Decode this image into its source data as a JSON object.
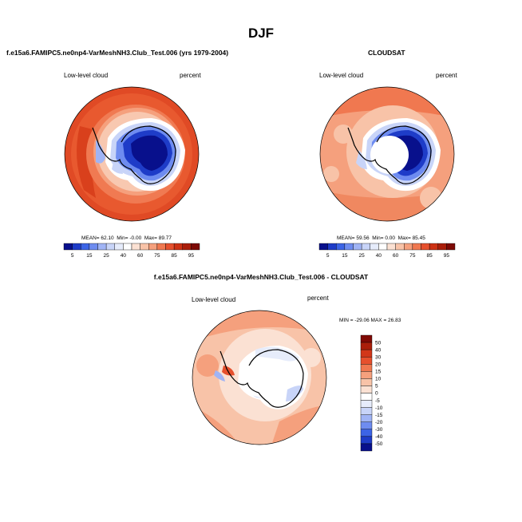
{
  "title": "DJF",
  "panels": {
    "model": {
      "title": "f.e15a6.FAMIPC5.ne0np4-VarMeshNH3.Club_Test.006 (yrs 1979-2004)",
      "left_label": "Low-level cloud",
      "right_label": "percent",
      "stats": {
        "mean_label": "MEAN=",
        "mean": "62.10",
        "min_label": "Min=",
        "min": "-0.00",
        "max_label": "Max=",
        "max": "89.77"
      }
    },
    "obs": {
      "title": "CLOUDSAT",
      "left_label": "Low-level cloud",
      "right_label": "percent",
      "stats": {
        "mean_label": "MEAN=",
        "mean": "59.56",
        "min_label": "Min=",
        "min": "0.00",
        "max_label": "Max=",
        "max": "85.45"
      }
    },
    "diff": {
      "title": "f.e15a6.FAMIPC5.ne0np4-VarMeshNH3.Club_Test.006 - CLOUDSAT",
      "left_label": "Low-level cloud",
      "right_label": "percent",
      "stats_text": "MIN = -29.06  MAX =  26.83"
    }
  },
  "colorbar_h": {
    "ticks": [
      "5",
      "15",
      "25",
      "40",
      "60",
      "75",
      "85",
      "95"
    ],
    "colors": [
      "#08108c",
      "#1e3cc8",
      "#3c64e6",
      "#6e8cf0",
      "#a0b4f5",
      "#c8d4f8",
      "#e6ecfb",
      "#ffffff",
      "#fbe1d3",
      "#f8c3a8",
      "#f5a07d",
      "#f07850",
      "#e6502d",
      "#cd3214",
      "#aa1e0a",
      "#7d0a05"
    ]
  },
  "colorbar_v": {
    "ticks": [
      "50",
      "40",
      "30",
      "20",
      "15",
      "10",
      "5",
      "0",
      "-5",
      "-10",
      "-15",
      "-20",
      "-30",
      "-40",
      "-50"
    ],
    "colors": [
      "#800a05",
      "#aa1e0a",
      "#d23719",
      "#e6502d",
      "#f07850",
      "#f5a07d",
      "#f8c3a8",
      "#fbe1d3",
      "#ffffff",
      "#e6ecfb",
      "#c8d4f8",
      "#a0b4f5",
      "#6e8cf0",
      "#3c64e6",
      "#1e3cc8",
      "#08108c"
    ]
  }
}
